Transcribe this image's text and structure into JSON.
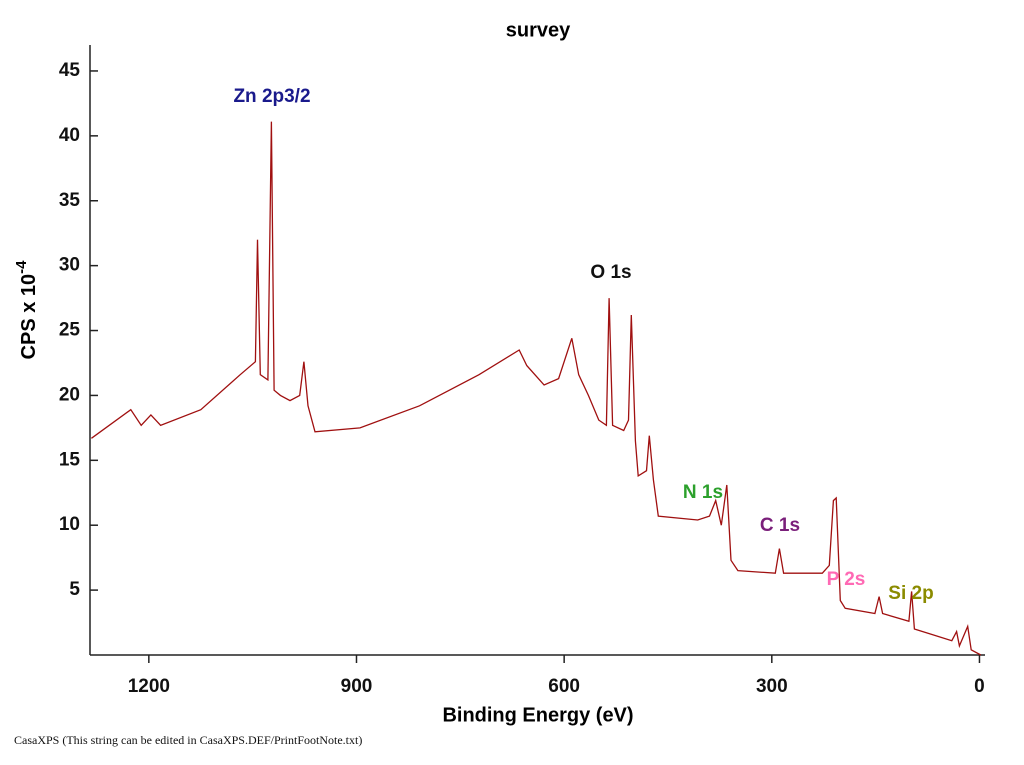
{
  "chart_data": {
    "type": "line",
    "title": "survey",
    "x_label": "Binding Energy (eV)",
    "y_label": "CPS x 10",
    "y_label_exponent": "-4",
    "footnote": "CasaXPS (This string can be edited in CasaXPS.DEF/PrintFootNote.txt)",
    "xlim": [
      1285,
      -8
    ],
    "ylim": [
      0,
      47
    ],
    "xticks": [
      1200,
      900,
      600,
      300,
      0
    ],
    "yticks": [
      5,
      10,
      15,
      20,
      25,
      30,
      35,
      40,
      45
    ],
    "series": [
      {
        "color": "#a01010",
        "x": [
          1283,
          1226,
          1211,
          1197,
          1183,
          1125,
          1068,
          1046,
          1043,
          1039,
          1028,
          1023,
          1019,
          1010,
          996,
          982,
          976,
          970,
          960,
          895,
          809,
          723,
          665,
          654,
          629,
          608,
          589,
          579,
          565,
          550,
          539,
          535,
          530,
          514,
          507,
          503,
          497,
          493,
          481,
          477,
          471,
          464,
          407,
          390,
          381,
          373,
          365,
          359,
          349,
          295,
          289,
          283,
          227,
          217,
          211,
          207,
          201,
          194,
          151,
          145,
          140,
          102,
          98,
          94,
          40,
          33,
          29,
          17,
          12,
          -2
        ],
        "values": [
          16.7,
          18.9,
          17.7,
          18.5,
          17.7,
          18.9,
          21.6,
          22.6,
          32.0,
          21.6,
          21.2,
          41.1,
          20.4,
          20.0,
          19.6,
          20.0,
          22.6,
          19.2,
          17.2,
          17.5,
          19.2,
          21.6,
          23.5,
          22.3,
          20.8,
          21.3,
          24.4,
          21.6,
          20.0,
          18.1,
          17.7,
          27.5,
          17.7,
          17.3,
          18.1,
          26.2,
          16.5,
          13.8,
          14.2,
          16.9,
          13.5,
          10.7,
          10.4,
          10.7,
          11.9,
          10.0,
          13.1,
          7.3,
          6.5,
          6.3,
          8.2,
          6.3,
          6.3,
          6.9,
          11.9,
          12.1,
          4.2,
          3.6,
          3.2,
          4.5,
          3.2,
          2.6,
          4.9,
          2.0,
          1.1,
          1.8,
          0.7,
          2.2,
          0.4,
          0
        ]
      }
    ],
    "annotations": [
      {
        "text": "Zn 2p3/2",
        "color": "#1a1a8c"
      },
      {
        "text": "O 1s",
        "color": "#111111"
      },
      {
        "text": "N 1s",
        "color": "#2ca02c"
      },
      {
        "text": "C 1s",
        "color": "#7a1f7a"
      },
      {
        "text": "P 2s",
        "color": "#ff69b4"
      },
      {
        "text": "Si 2p",
        "color": "#8b8b00"
      }
    ]
  }
}
